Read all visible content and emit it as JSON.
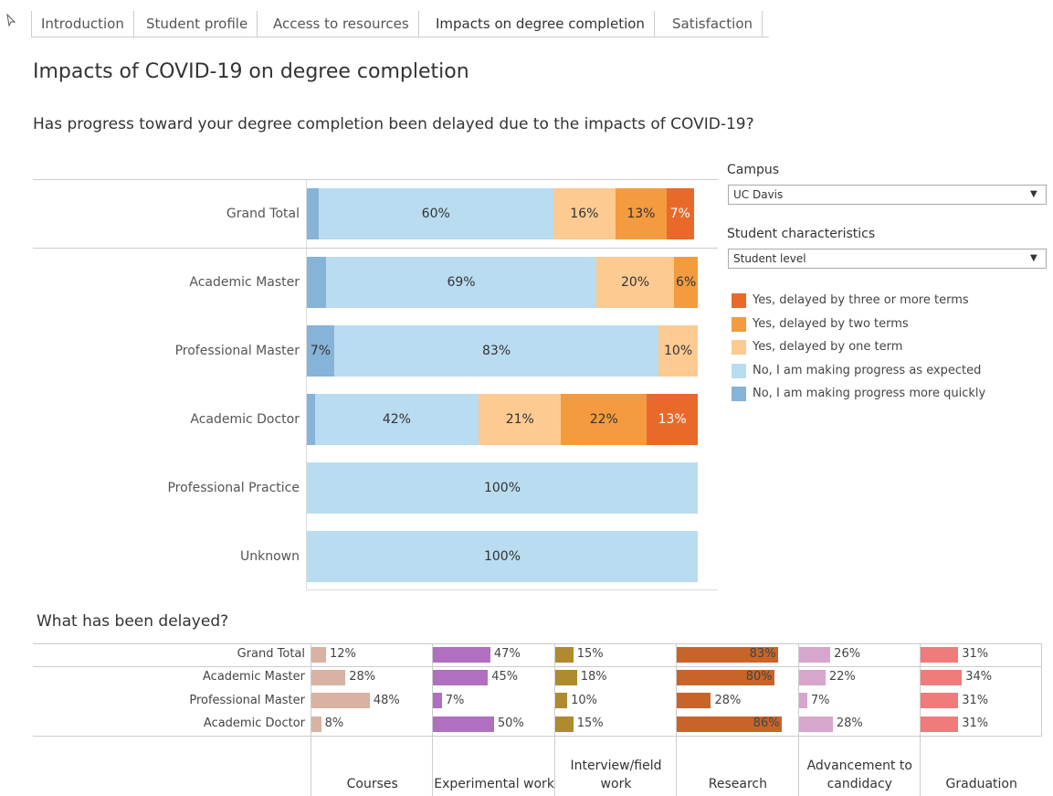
{
  "tabs": [
    "Introduction",
    "Student profile",
    "Access to resources",
    "Impacts on degree completion",
    "Satisfaction"
  ],
  "title": "Impacts of COVID-19 on degree completion",
  "filters": [
    {
      "label": "Campus",
      "value": "UC Davis"
    },
    {
      "label": "Student characteristics",
      "value": "Student level"
    }
  ],
  "chart_data": [
    {
      "type": "stacked-bar",
      "title": "Has progress toward your degree completion been delayed due to the impacts of COVID-19?",
      "categories": [
        "Grand Total",
        "Academic Master",
        "Professional Master",
        "Academic Doctor",
        "Professional Practice",
        "Unknown"
      ],
      "xlim": [
        0,
        100
      ],
      "series": [
        {
          "name": "No, I am making progress more quickly",
          "color": "#86b3d8",
          "values": [
            3,
            5,
            7,
            2,
            0,
            0
          ],
          "value_labels": [
            null,
            null,
            "7%",
            null,
            null,
            null
          ]
        },
        {
          "name": "No, I am making progress as expected",
          "color": "#b9dcf0",
          "values": [
            60,
            69,
            83,
            42,
            100,
            100
          ],
          "value_labels": [
            "60%",
            "69%",
            "83%",
            "42%",
            "100%",
            "100%"
          ]
        },
        {
          "name": "Yes, delayed by one term",
          "color": "#fdca91",
          "values": [
            16,
            20,
            10,
            21,
            0,
            0
          ],
          "value_labels": [
            "16%",
            "20%",
            "10%",
            "21%",
            null,
            null
          ]
        },
        {
          "name": "Yes, delayed by two terms",
          "color": "#f39b3e",
          "values": [
            13,
            6,
            0,
            22,
            0,
            0
          ],
          "value_labels": [
            "13%",
            "6%",
            null,
            "22%",
            null,
            null
          ]
        },
        {
          "name": "Yes, delayed by three or more terms",
          "color": "#e8692a",
          "values": [
            7,
            0,
            0,
            13,
            0,
            0
          ],
          "value_labels": [
            "7%",
            null,
            null,
            "13%",
            null,
            null
          ]
        }
      ]
    },
    {
      "type": "small-multiple-bar",
      "title": "What has been delayed?",
      "categories": [
        "Grand Total",
        "Academic Master",
        "Professional Master",
        "Academic Doctor"
      ],
      "xlim": [
        0,
        100
      ],
      "series": [
        {
          "name": "Courses",
          "color": "#d8b2a2",
          "values": [
            12,
            28,
            48,
            8
          ],
          "value_labels": [
            "12%",
            "28%",
            "48%",
            "8%"
          ]
        },
        {
          "name": "Experimental work",
          "color": "#b06fc0",
          "values": [
            47,
            45,
            7,
            50
          ],
          "value_labels": [
            "47%",
            "45%",
            "7%",
            "50%"
          ]
        },
        {
          "name": "Interview/field work",
          "color": "#b08a2e",
          "values": [
            15,
            18,
            10,
            15
          ],
          "value_labels": [
            "15%",
            "18%",
            "10%",
            "15%"
          ]
        },
        {
          "name": "Research",
          "color": "#c8642a",
          "values": [
            83,
            80,
            28,
            86
          ],
          "value_labels": [
            "83%",
            "80%",
            "28%",
            "86%"
          ]
        },
        {
          "name": "Advancement to candidacy",
          "color": "#d7a6cc",
          "values": [
            26,
            22,
            7,
            28
          ],
          "value_labels": [
            "26%",
            "22%",
            "7%",
            "28%"
          ]
        },
        {
          "name": "Graduation",
          "color": "#ef7b7b",
          "values": [
            31,
            34,
            31,
            31
          ],
          "value_labels": [
            "31%",
            "34%",
            "31%",
            "31%"
          ]
        }
      ]
    }
  ]
}
